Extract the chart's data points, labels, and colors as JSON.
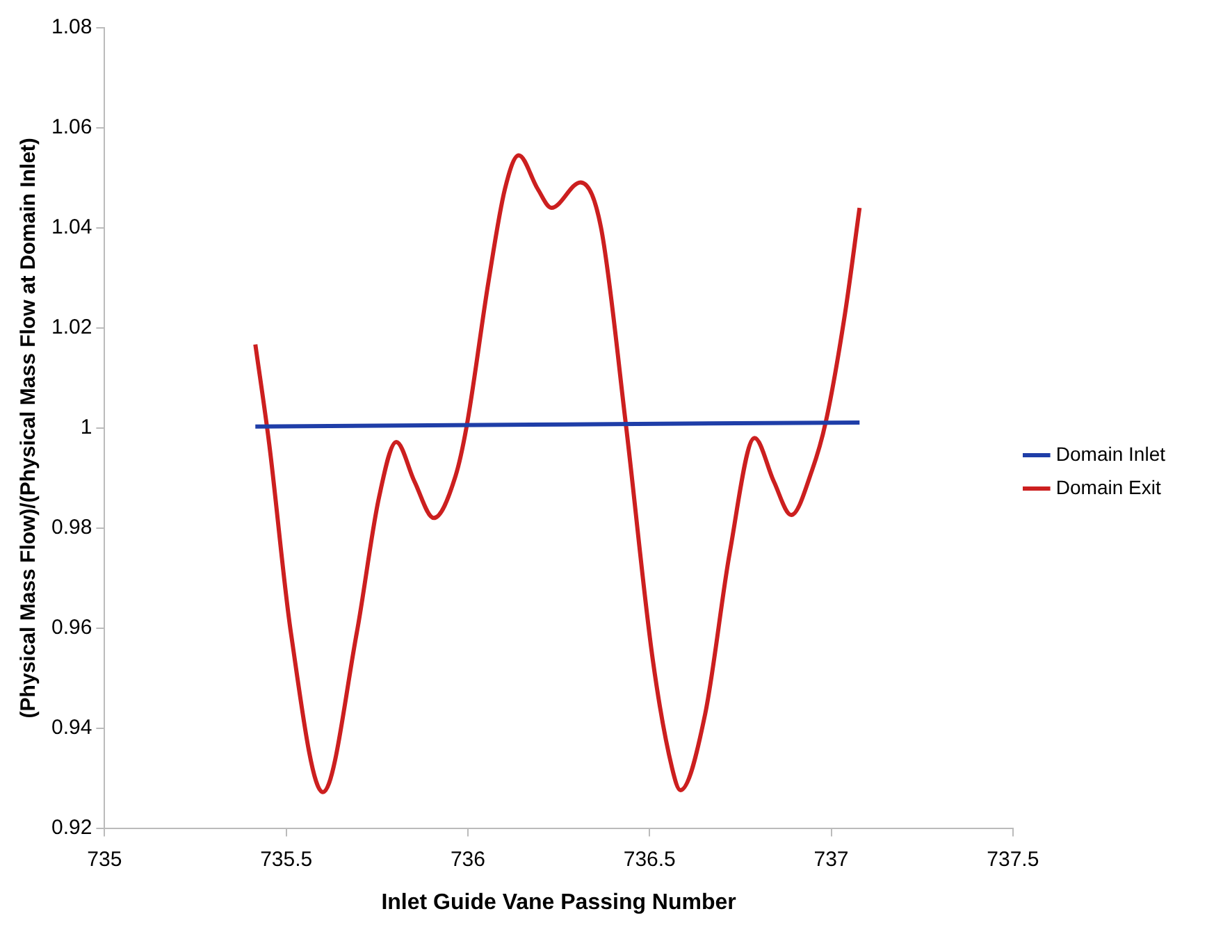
{
  "chart_data": {
    "type": "line",
    "xlabel": "Inlet Guide Vane Passing Number",
    "ylabel": "(Physical Mass Flow)/(Physical Mass Flow at Domain Inlet)",
    "xlim": [
      735,
      737.5
    ],
    "xticks": [
      735,
      735.5,
      736,
      736.5,
      737,
      737.5
    ],
    "ylim": [
      0.92,
      1.08
    ],
    "yticks": [
      0.92,
      0.94,
      0.96,
      0.98,
      1,
      1.02,
      1.04,
      1.06,
      1.08
    ],
    "grid": false,
    "legend": "right",
    "marker": "none",
    "line_style": "solid",
    "series": [
      {
        "name": "Domain Inlet",
        "color": "#1f3ea8",
        "x": [
          735.415,
          737.078
        ],
        "values": [
          1.0003,
          1.0011
        ]
      },
      {
        "name": "Domain Exit",
        "color": "#cc1f1f",
        "x": [
          735.415,
          735.453,
          735.513,
          735.601,
          735.694,
          735.755,
          735.803,
          735.853,
          735.906,
          735.966,
          735.996,
          736.057,
          736.102,
          736.14,
          736.192,
          736.23,
          736.31,
          736.366,
          736.434,
          736.509,
          736.562,
          736.585,
          736.653,
          736.721,
          736.789,
          736.842,
          736.89,
          736.947,
          736.985,
          737.038,
          737.078
        ],
        "values": [
          1.0167,
          0.9969,
          0.959,
          0.9272,
          0.959,
          0.986,
          0.9972,
          0.9893,
          0.982,
          0.9904,
          1.0001,
          1.0294,
          1.0478,
          1.0545,
          1.0478,
          1.044,
          1.0491,
          1.0402,
          1.0012,
          0.9536,
          0.932,
          0.9276,
          0.9428,
          0.9752,
          0.998,
          0.9893,
          0.9826,
          0.9915,
          1.0012,
          1.0229,
          1.044
        ]
      }
    ]
  }
}
